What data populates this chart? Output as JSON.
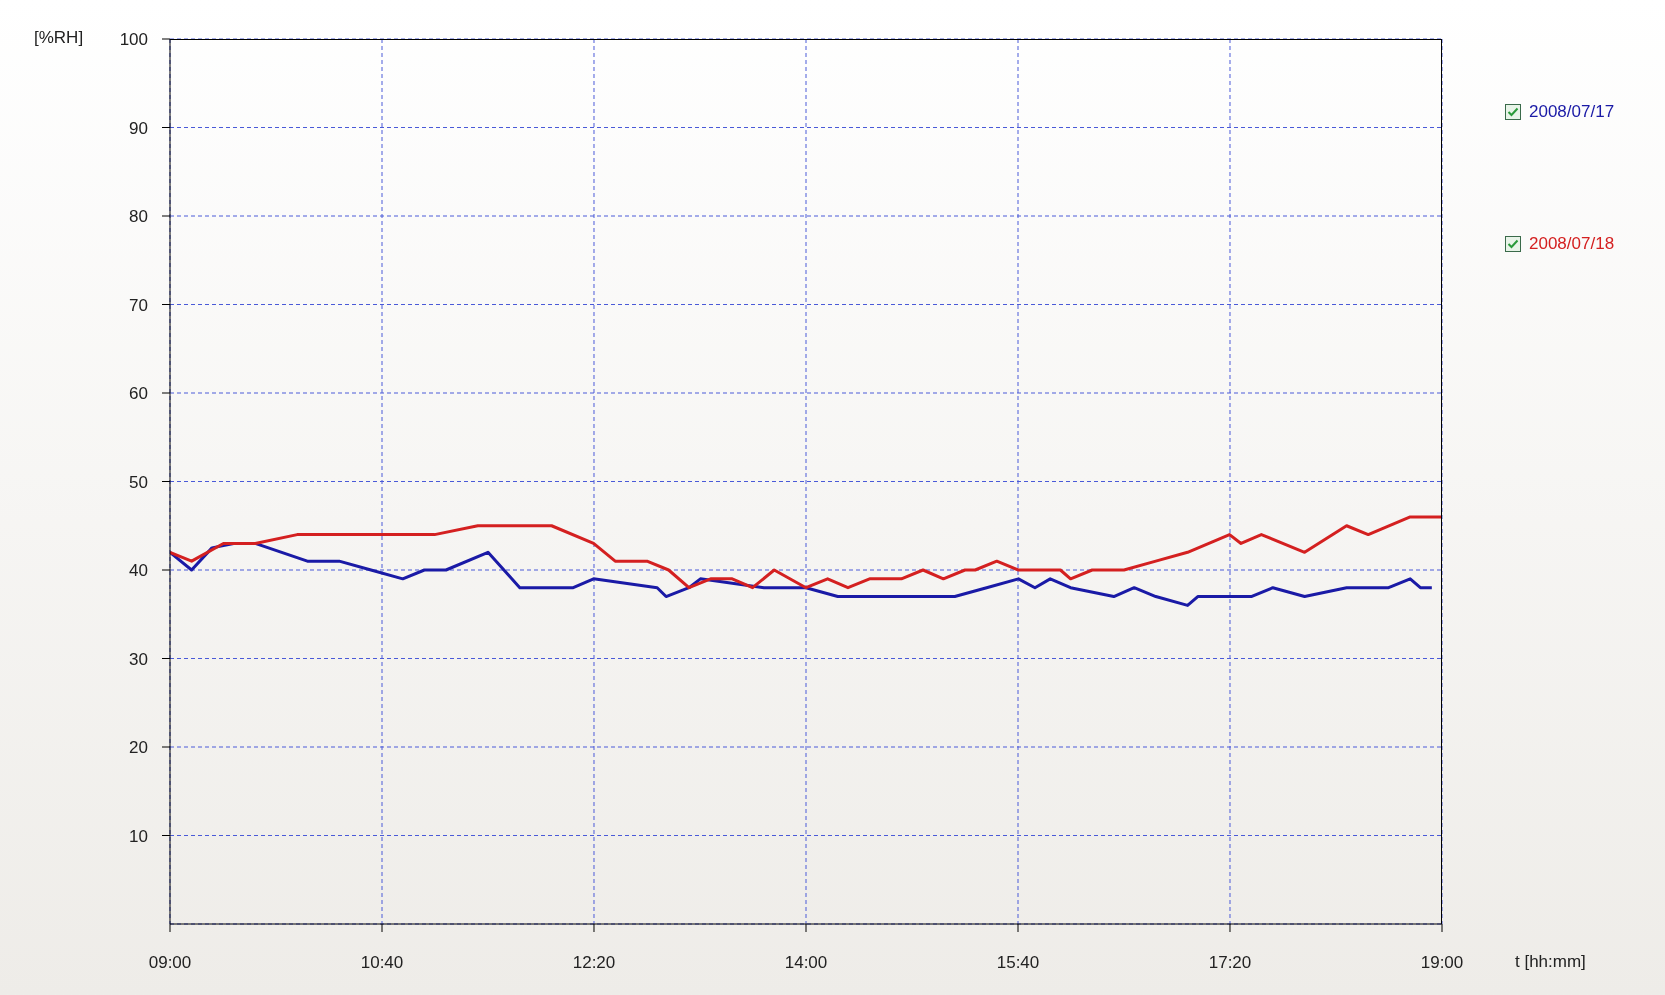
{
  "chart_data": {
    "type": "line",
    "xlabel": "t [hh:mm]",
    "ylabel": "[%RH]",
    "xlim": [
      9,
      19
    ],
    "xticks": [
      {
        "value": 9,
        "label": "09:00"
      },
      {
        "value": 10.6667,
        "label": "10:40"
      },
      {
        "value": 12.3333,
        "label": "12:20"
      },
      {
        "value": 14,
        "label": "14:00"
      },
      {
        "value": 15.6667,
        "label": "15:40"
      },
      {
        "value": 17.3333,
        "label": "17:20"
      },
      {
        "value": 19,
        "label": "19:00"
      }
    ],
    "ylim": [
      0,
      100
    ],
    "yticks": [
      10,
      20,
      30,
      40,
      50,
      60,
      70,
      80,
      90,
      100
    ],
    "grid": true,
    "legend": "top right",
    "line_style": "solid",
    "marker": "none",
    "series": [
      {
        "name": "2008/07/17",
        "color": "#1a1aa6",
        "x": [
          9,
          9.17,
          9.33,
          9.5,
          9.67,
          10.08,
          10.33,
          10.58,
          10.83,
          11,
          11.17,
          11.5,
          11.75,
          12.17,
          12.33,
          12.83,
          12.9,
          13.08,
          13.17,
          13.67,
          14,
          14.25,
          15.17,
          15.42,
          15.67,
          15.8,
          15.92,
          16.08,
          16.42,
          16.58,
          16.75,
          17,
          17.08,
          17.5,
          17.67,
          17.92,
          18.25,
          18.58,
          18.75,
          18.83,
          18.92
        ],
        "values": [
          42,
          40,
          42.5,
          43,
          43,
          41,
          41,
          40,
          39,
          40,
          40,
          42,
          38,
          38,
          39,
          38,
          37,
          38,
          39,
          38,
          38,
          37,
          37,
          38,
          39,
          38,
          39,
          38,
          37,
          38,
          37,
          36,
          37,
          37,
          38,
          37,
          38,
          38,
          39,
          38,
          38
        ]
      },
      {
        "name": "2008/07/18",
        "color": "#d42020",
        "x": [
          9,
          9.17,
          9.42,
          9.67,
          10,
          10.5,
          11,
          11.08,
          11.42,
          12,
          12.33,
          12.5,
          12.75,
          12.92,
          13.08,
          13.25,
          13.42,
          13.58,
          13.75,
          14,
          14.17,
          14.33,
          14.5,
          14.75,
          14.92,
          15.08,
          15.25,
          15.33,
          15.5,
          15.67,
          16,
          16.08,
          16.25,
          16.5,
          16.75,
          17,
          17.33,
          17.42,
          17.58,
          17.92,
          18.25,
          18.42,
          18.75,
          19
        ],
        "values": [
          42,
          41,
          43,
          43,
          44,
          44,
          44,
          44,
          45,
          45,
          43,
          41,
          41,
          40,
          38,
          39,
          39,
          38,
          40,
          38,
          39,
          38,
          39,
          39,
          40,
          39,
          40,
          40,
          41,
          40,
          40,
          39,
          40,
          40,
          41,
          42,
          44,
          43,
          44,
          42,
          45,
          44,
          46,
          46
        ]
      }
    ]
  }
}
